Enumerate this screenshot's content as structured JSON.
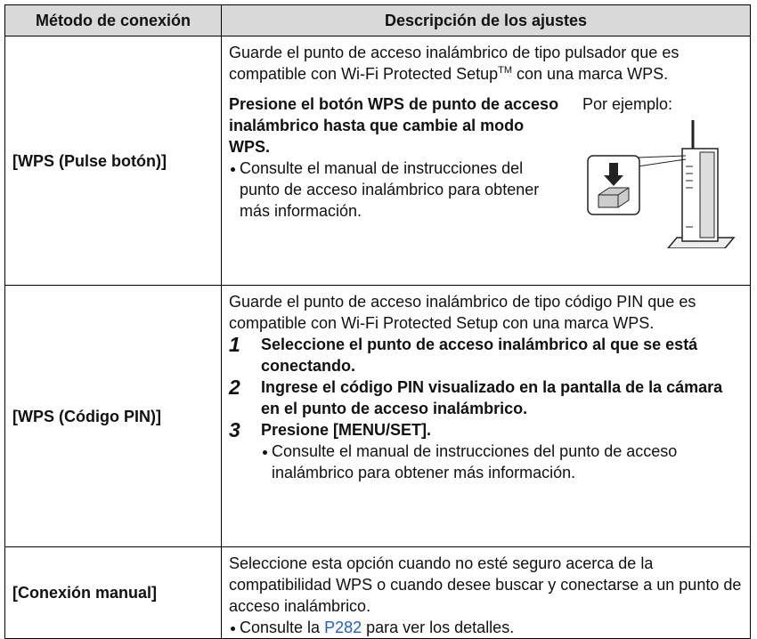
{
  "table": {
    "headers": [
      "Método de conexión",
      "Descripción de los ajustes"
    ],
    "rows": [
      {
        "method": "[WPS (Pulse botón)]",
        "intro": [
          "Guarde el punto de acceso inalámbrico de tipo pulsador que es compatible con Wi-Fi Protected Setup",
          "TM",
          " con una marca WPS."
        ],
        "instruction": "Presione el botón WPS de punto de acceso inalámbrico hasta que cambie al modo WPS.",
        "note": "Consulte el manual de instrucciones del punto de acceso inalámbrico para obtener más información.",
        "example_label": "Por ejemplo:"
      },
      {
        "method": "[WPS (Código PIN)]",
        "intro": "Guarde el punto de acceso inalámbrico de tipo código PIN que es compatible con Wi-Fi Protected Setup con una marca WPS.",
        "steps": [
          {
            "number": "1",
            "text": "Seleccione el punto de acceso inalámbrico al que se está conectando."
          },
          {
            "number": "2",
            "text": "Ingrese el código PIN visualizado en la pantalla de la cámara en el punto de acceso inalámbrico."
          },
          {
            "number": "3",
            "text": "Presione [MENU/SET]."
          }
        ],
        "note": "Consulte el manual de instrucciones del punto de acceso inalámbrico para obtener más información."
      },
      {
        "method": "[Conexión manual]",
        "intro": "Seleccione esta opción cuando no esté seguro acerca de la compatibilidad WPS o cuando desee buscar y conectarse a un punto de acceso inalámbrico.",
        "note": [
          "Consulte la ",
          "P282",
          " para ver los detalles."
        ]
      }
    ]
  }
}
